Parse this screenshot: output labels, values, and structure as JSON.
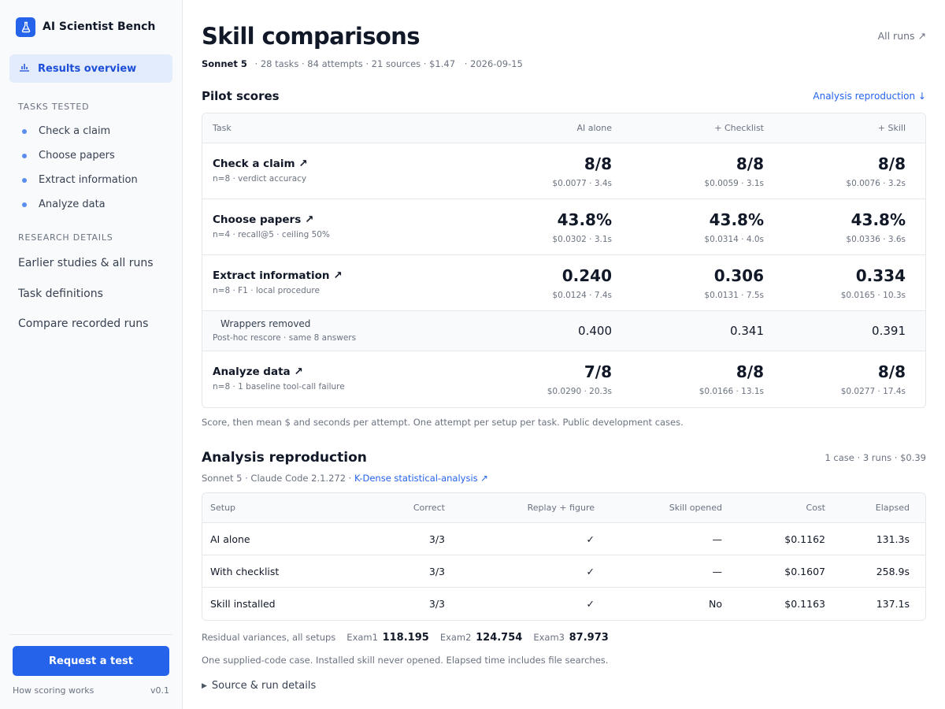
{
  "sidebar": {
    "brand": "AI Scientist Bench",
    "active_item": "Results overview",
    "tasks_heading": "TASKS TESTED",
    "tasks": [
      "Check a claim",
      "Choose papers",
      "Extract information",
      "Analyze data"
    ],
    "details_heading": "RESEARCH DETAILS",
    "details": [
      "Earlier studies & all runs",
      "Task definitions",
      "Compare recorded runs"
    ],
    "request_button": "Request a test",
    "scoring_link": "How scoring works",
    "version": "v0.1"
  },
  "header": {
    "title": "Skill comparisons",
    "all_runs": "All runs ↗",
    "model": "Sonnet 5",
    "meta": "· 28 tasks · 84 attempts · 21 sources · $1.47",
    "date": "· 2026-09-15"
  },
  "pilot": {
    "title": "Pilot scores",
    "link": "Analysis reproduction ↓",
    "columns": [
      "Task",
      "AI alone",
      "+ Checklist",
      "+ Skill"
    ],
    "rows": [
      {
        "name": "Check a claim ↗",
        "sub": "n=8 · verdict accuracy",
        "cells": [
          {
            "score": "8/8",
            "cost": "$0.0077 · 3.4s"
          },
          {
            "score": "8/8",
            "cost": "$0.0059 · 3.1s"
          },
          {
            "score": "8/8",
            "cost": "$0.0076 · 3.2s"
          }
        ]
      },
      {
        "name": "Choose papers ↗",
        "sub": "n=4 · recall@5 · ceiling 50%",
        "cells": [
          {
            "score": "43.8%",
            "cost": "$0.0302 · 3.1s"
          },
          {
            "score": "43.8%",
            "cost": "$0.0314 · 4.0s"
          },
          {
            "score": "43.8%",
            "cost": "$0.0336 · 3.6s"
          }
        ]
      },
      {
        "name": "Extract information ↗",
        "sub": "n=8 · F1 · local procedure",
        "cells": [
          {
            "score": "0.240",
            "cost": "$0.0124 · 7.4s"
          },
          {
            "score": "0.306",
            "cost": "$0.0131 · 7.5s"
          },
          {
            "score": "0.334",
            "cost": "$0.0165 · 10.3s"
          }
        ]
      }
    ],
    "wrappers": {
      "name": "Wrappers removed",
      "sub": "Post-hoc rescore · same 8 answers",
      "values": [
        "0.400",
        "0.341",
        "0.391"
      ]
    },
    "last_row": {
      "name": "Analyze data ↗",
      "sub": "n=8 · 1 baseline tool-call failure",
      "cells": [
        {
          "score": "7/8",
          "cost": "$0.0290 · 20.3s"
        },
        {
          "score": "8/8",
          "cost": "$0.0166 · 13.1s"
        },
        {
          "score": "8/8",
          "cost": "$0.0277 · 17.4s"
        }
      ]
    },
    "note": "Score, then mean $ and seconds per attempt. One attempt per setup per task. Public development cases."
  },
  "repro": {
    "title": "Analysis reproduction",
    "summary": "1 case · 3 runs · $0.39",
    "meta": "Sonnet 5 · Claude Code 2.1.272 ·",
    "meta_link": "K-Dense statistical-analysis ↗",
    "columns": [
      "Setup",
      "Correct",
      "Replay + figure",
      "Skill opened",
      "Cost",
      "Elapsed"
    ],
    "rows": [
      [
        "AI alone",
        "3/3",
        "✓",
        "—",
        "$0.1162",
        "131.3s"
      ],
      [
        "With checklist",
        "3/3",
        "✓",
        "—",
        "$0.1607",
        "258.9s"
      ],
      [
        "Skill installed",
        "3/3",
        "✓",
        "No",
        "$0.1163",
        "137.1s"
      ]
    ],
    "variances_label": "Residual variances, all setups",
    "variances": [
      {
        "label": "Exam1",
        "value": "118.195"
      },
      {
        "label": "Exam2",
        "value": "124.754"
      },
      {
        "label": "Exam3",
        "value": "87.973"
      }
    ],
    "note": "One supplied-code case. Installed skill never opened. Elapsed time includes file searches.",
    "details_toggle": "Source & run details"
  },
  "colors": {
    "accent": "#2563eb",
    "active_bg": "#e3ecfc",
    "sidebar_bg": "#f8fafc"
  }
}
